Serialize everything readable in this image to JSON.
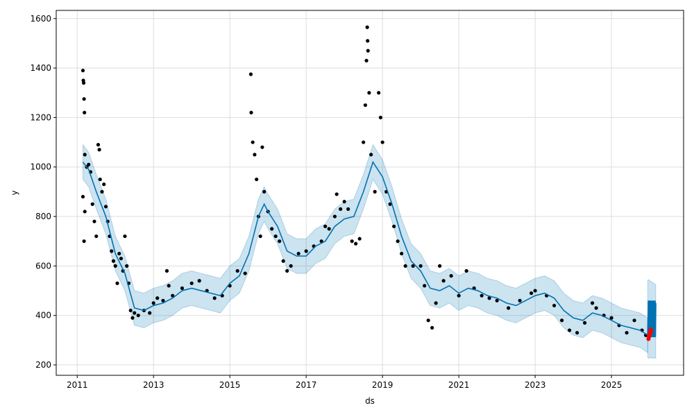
{
  "chart_data": {
    "type": "line",
    "title": "",
    "xlabel": "ds",
    "ylabel": "y",
    "xlim": [
      2010.45,
      2026.89
    ],
    "ylim": [
      158,
      1633
    ],
    "grid": true,
    "x_ticks": [
      "2011",
      "2013",
      "2015",
      "2017",
      "2019",
      "2021",
      "2023",
      "2025"
    ],
    "y_ticks": [
      "200",
      "400",
      "600",
      "800",
      "1000",
      "1200",
      "1400",
      "1600"
    ],
    "colors": {
      "forecast": "#0072B2",
      "band": "#0072B2",
      "observed": "#000000",
      "highlight": "#FF0000",
      "grid": "#dddddd"
    },
    "forecast": {
      "x": [
        2011.15,
        2011.3,
        2011.5,
        2011.75,
        2012.0,
        2012.25,
        2012.5,
        2012.75,
        2013.0,
        2013.25,
        2013.5,
        2013.75,
        2014.0,
        2014.25,
        2014.5,
        2014.75,
        2015.0,
        2015.25,
        2015.5,
        2015.75,
        2015.9,
        2016.0,
        2016.25,
        2016.5,
        2016.75,
        2017.0,
        2017.25,
        2017.5,
        2017.75,
        2018.0,
        2018.25,
        2018.5,
        2018.75,
        2019.0,
        2019.25,
        2019.5,
        2019.75,
        2020.0,
        2020.25,
        2020.5,
        2020.75,
        2021.0,
        2021.25,
        2021.5,
        2021.75,
        2022.0,
        2022.25,
        2022.5,
        2022.75,
        2023.0,
        2023.25,
        2023.5,
        2023.75,
        2024.0,
        2024.25,
        2024.5,
        2024.75,
        2025.0,
        2025.25,
        2025.5,
        2025.75,
        2025.95
      ],
      "yhat": [
        1020,
        990,
        900,
        800,
        650,
        570,
        430,
        420,
        440,
        450,
        470,
        500,
        510,
        500,
        490,
        480,
        530,
        560,
        650,
        800,
        850,
        820,
        760,
        660,
        640,
        640,
        680,
        700,
        760,
        790,
        800,
        900,
        1020,
        960,
        850,
        720,
        620,
        580,
        510,
        500,
        520,
        490,
        510,
        500,
        480,
        470,
        450,
        440,
        460,
        480,
        490,
        470,
        420,
        390,
        380,
        410,
        400,
        380,
        360,
        350,
        340,
        320
      ],
      "yhat_lower": [
        950,
        920,
        830,
        730,
        580,
        500,
        360,
        350,
        370,
        380,
        400,
        430,
        440,
        430,
        420,
        410,
        460,
        490,
        580,
        730,
        780,
        750,
        690,
        590,
        570,
        570,
        610,
        630,
        690,
        720,
        730,
        830,
        950,
        890,
        780,
        650,
        550,
        510,
        440,
        430,
        450,
        420,
        440,
        430,
        410,
        400,
        380,
        370,
        390,
        410,
        420,
        400,
        350,
        320,
        310,
        340,
        330,
        310,
        290,
        280,
        270,
        250
      ],
      "yhat_upper": [
        1090,
        1060,
        970,
        870,
        720,
        640,
        500,
        490,
        510,
        520,
        540,
        570,
        580,
        570,
        560,
        550,
        600,
        630,
        720,
        870,
        920,
        890,
        830,
        730,
        710,
        710,
        750,
        770,
        830,
        860,
        870,
        970,
        1090,
        1030,
        920,
        790,
        690,
        650,
        580,
        570,
        590,
        560,
        580,
        570,
        550,
        540,
        520,
        510,
        530,
        550,
        560,
        540,
        490,
        460,
        450,
        480,
        470,
        450,
        430,
        420,
        410,
        390
      ]
    },
    "future": {
      "x": [
        2025.95,
        2025.97,
        2025.99,
        2026.01,
        2026.03,
        2026.05,
        2026.07,
        2026.09,
        2026.11,
        2026.13,
        2026.15,
        2026.16
      ],
      "yhat": [
        315,
        455,
        312,
        460,
        318,
        458,
        314,
        456,
        316,
        454,
        313,
        450
      ],
      "yhat_lower": [
        230,
        228,
        226,
        232,
        230,
        228,
        226,
        230,
        228,
        226,
        230,
        228
      ],
      "yhat_upper": [
        540,
        545,
        542,
        540,
        538,
        536,
        534,
        532,
        530,
        528,
        526,
        525
      ]
    },
    "observed": [
      [
        2011.15,
        1390
      ],
      [
        2011.16,
        1350
      ],
      [
        2011.17,
        1340
      ],
      [
        2011.18,
        1275
      ],
      [
        2011.19,
        1220
      ],
      [
        2011.2,
        1050
      ],
      [
        2011.15,
        880
      ],
      [
        2011.18,
        700
      ],
      [
        2011.2,
        820
      ],
      [
        2011.25,
        1000
      ],
      [
        2011.3,
        1010
      ],
      [
        2011.35,
        980
      ],
      [
        2011.4,
        850
      ],
      [
        2011.45,
        780
      ],
      [
        2011.5,
        720
      ],
      [
        2011.55,
        1090
      ],
      [
        2011.58,
        1070
      ],
      [
        2011.6,
        950
      ],
      [
        2011.65,
        900
      ],
      [
        2011.7,
        930
      ],
      [
        2011.75,
        840
      ],
      [
        2011.8,
        780
      ],
      [
        2011.85,
        720
      ],
      [
        2011.9,
        660
      ],
      [
        2011.95,
        620
      ],
      [
        2012.0,
        600
      ],
      [
        2012.05,
        530
      ],
      [
        2012.1,
        650
      ],
      [
        2012.15,
        630
      ],
      [
        2012.2,
        580
      ],
      [
        2012.25,
        720
      ],
      [
        2012.3,
        600
      ],
      [
        2012.35,
        530
      ],
      [
        2012.4,
        420
      ],
      [
        2012.45,
        390
      ],
      [
        2012.5,
        410
      ],
      [
        2012.6,
        400
      ],
      [
        2012.75,
        420
      ],
      [
        2012.9,
        410
      ],
      [
        2013.0,
        450
      ],
      [
        2013.1,
        470
      ],
      [
        2013.25,
        460
      ],
      [
        2013.35,
        580
      ],
      [
        2013.4,
        520
      ],
      [
        2013.5,
        480
      ],
      [
        2013.75,
        510
      ],
      [
        2014.0,
        530
      ],
      [
        2014.2,
        540
      ],
      [
        2014.4,
        500
      ],
      [
        2014.6,
        470
      ],
      [
        2014.8,
        480
      ],
      [
        2015.0,
        520
      ],
      [
        2015.2,
        580
      ],
      [
        2015.4,
        570
      ],
      [
        2015.55,
        1375
      ],
      [
        2015.56,
        1220
      ],
      [
        2015.6,
        1100
      ],
      [
        2015.65,
        1050
      ],
      [
        2015.7,
        950
      ],
      [
        2015.75,
        800
      ],
      [
        2015.8,
        720
      ],
      [
        2015.85,
        1080
      ],
      [
        2015.9,
        900
      ],
      [
        2016.0,
        820
      ],
      [
        2016.1,
        750
      ],
      [
        2016.2,
        720
      ],
      [
        2016.3,
        700
      ],
      [
        2016.4,
        620
      ],
      [
        2016.5,
        580
      ],
      [
        2016.6,
        600
      ],
      [
        2016.8,
        650
      ],
      [
        2017.0,
        660
      ],
      [
        2017.2,
        680
      ],
      [
        2017.4,
        700
      ],
      [
        2017.5,
        760
      ],
      [
        2017.6,
        750
      ],
      [
        2017.75,
        800
      ],
      [
        2017.8,
        890
      ],
      [
        2017.9,
        830
      ],
      [
        2018.0,
        860
      ],
      [
        2018.1,
        830
      ],
      [
        2018.2,
        700
      ],
      [
        2018.3,
        690
      ],
      [
        2018.4,
        710
      ],
      [
        2018.5,
        1100
      ],
      [
        2018.55,
        1250
      ],
      [
        2018.58,
        1430
      ],
      [
        2018.6,
        1565
      ],
      [
        2018.61,
        1510
      ],
      [
        2018.62,
        1470
      ],
      [
        2018.65,
        1300
      ],
      [
        2018.7,
        1050
      ],
      [
        2018.8,
        900
      ],
      [
        2018.9,
        1300
      ],
      [
        2018.95,
        1200
      ],
      [
        2019.0,
        1100
      ],
      [
        2019.1,
        900
      ],
      [
        2019.2,
        850
      ],
      [
        2019.3,
        760
      ],
      [
        2019.4,
        700
      ],
      [
        2019.5,
        650
      ],
      [
        2019.6,
        600
      ],
      [
        2019.8,
        600
      ],
      [
        2020.0,
        600
      ],
      [
        2020.1,
        520
      ],
      [
        2020.2,
        380
      ],
      [
        2020.3,
        350
      ],
      [
        2020.4,
        450
      ],
      [
        2020.5,
        600
      ],
      [
        2020.6,
        540
      ],
      [
        2020.8,
        560
      ],
      [
        2021.0,
        480
      ],
      [
        2021.2,
        580
      ],
      [
        2021.4,
        510
      ],
      [
        2021.6,
        480
      ],
      [
        2021.8,
        470
      ],
      [
        2022.0,
        460
      ],
      [
        2022.3,
        430
      ],
      [
        2022.6,
        460
      ],
      [
        2022.9,
        490
      ],
      [
        2023.0,
        500
      ],
      [
        2023.3,
        480
      ],
      [
        2023.5,
        440
      ],
      [
        2023.7,
        380
      ],
      [
        2023.9,
        340
      ],
      [
        2024.1,
        330
      ],
      [
        2024.3,
        370
      ],
      [
        2024.5,
        450
      ],
      [
        2024.6,
        430
      ],
      [
        2024.8,
        400
      ],
      [
        2025.0,
        390
      ],
      [
        2025.2,
        360
      ],
      [
        2025.4,
        330
      ],
      [
        2025.6,
        380
      ],
      [
        2025.8,
        340
      ],
      [
        2025.9,
        320
      ]
    ],
    "highlighted": [
      [
        2025.97,
        305
      ],
      [
        2025.98,
        312
      ],
      [
        2025.99,
        320
      ],
      [
        2026.0,
        325
      ],
      [
        2026.01,
        330
      ],
      [
        2026.02,
        338
      ],
      [
        2026.03,
        342
      ],
      [
        2026.04,
        335
      ]
    ]
  }
}
